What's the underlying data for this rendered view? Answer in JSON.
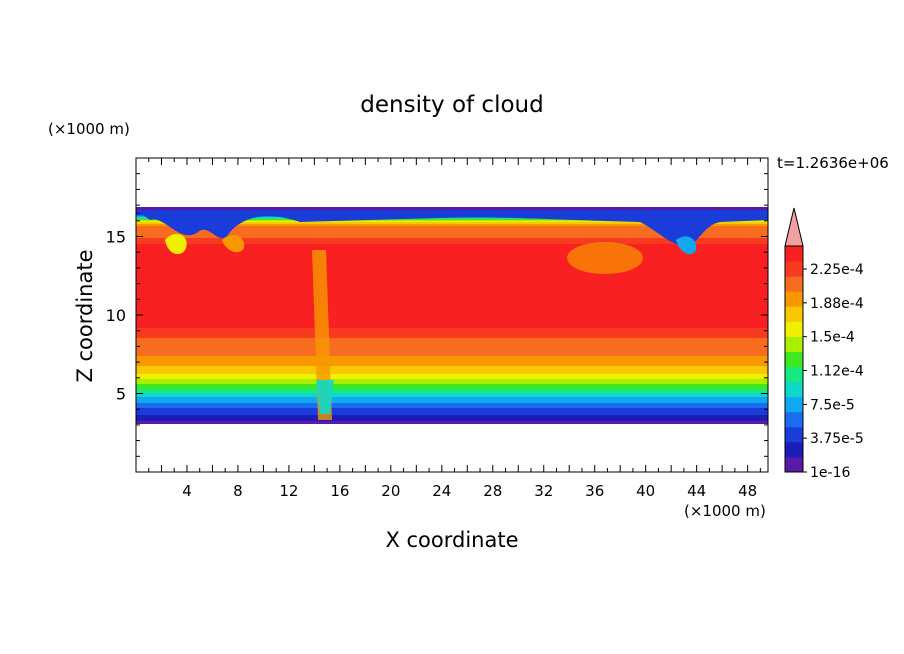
{
  "chart_data": {
    "type": "heatmap",
    "title": "density of cloud",
    "xlabel": "X coordinate",
    "ylabel": "Z coordinate",
    "x_unit": "(×1000 m)",
    "y_unit": "(×1000 m)",
    "time_label": "t=1.2636e+06",
    "xlim": [
      0,
      49.6
    ],
    "ylim": [
      0,
      20
    ],
    "x_ticks": [
      4,
      8,
      12,
      16,
      20,
      24,
      28,
      32,
      36,
      40,
      44,
      48
    ],
    "y_ticks": [
      5,
      10,
      15
    ],
    "cloud_base_z": 3.3,
    "cloud_top_z": 16.6,
    "colorbar": {
      "levels": [
        1e-16,
        3.75e-05,
        7.5e-05,
        0.000112,
        0.00015,
        0.000188,
        0.000225
      ],
      "tick_labels": [
        "2.25e-4",
        "1.88e-4",
        "1.5e-4",
        "1.12e-4",
        "7.5e-5",
        "3.75e-5",
        "1e-16"
      ],
      "colors": [
        "#5a1aa8",
        "#1c1cb8",
        "#1a3cd8",
        "#1a6cf0",
        "#10a8f0",
        "#10d8c8",
        "#18e880",
        "#40e820",
        "#a8f000",
        "#f0f000",
        "#f8c800",
        "#f89800",
        "#f86c20",
        "#f83a20",
        "#f82020"
      ],
      "extend_color": "#f4a0a0"
    },
    "grid": false
  }
}
